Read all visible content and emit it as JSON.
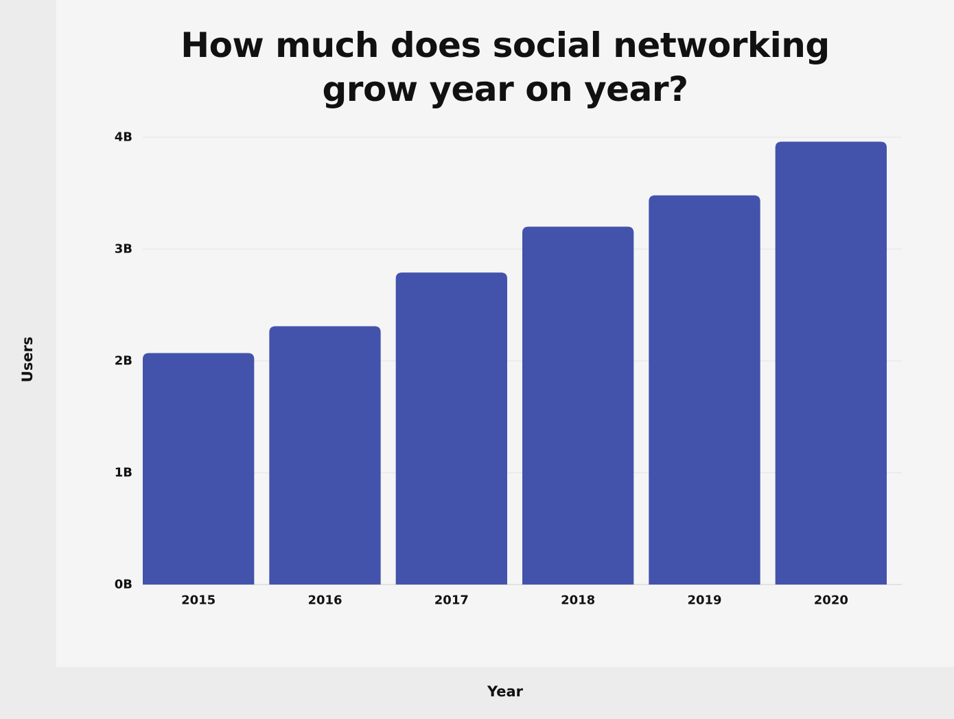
{
  "chart_data": {
    "type": "bar",
    "title": [
      "How much does social networking",
      "grow year on year?"
    ],
    "xlabel": "Year",
    "ylabel": "Users",
    "categories": [
      "2015",
      "2016",
      "2017",
      "2018",
      "2019",
      "2020"
    ],
    "values": [
      2.07,
      2.31,
      2.79,
      3.2,
      3.48,
      3.96
    ],
    "value_unit": "billions",
    "ylim": [
      0,
      4
    ],
    "yticks": [
      0,
      1,
      2,
      3,
      4
    ],
    "ytick_labels": [
      "0B",
      "1B",
      "2B",
      "3B",
      "4B"
    ],
    "grid": true,
    "colors": {
      "bar": "#4353ac",
      "gridline": "#e2e2e2",
      "background": "#f5f5f5",
      "side_band": "#ececec",
      "text": "#111111"
    }
  }
}
